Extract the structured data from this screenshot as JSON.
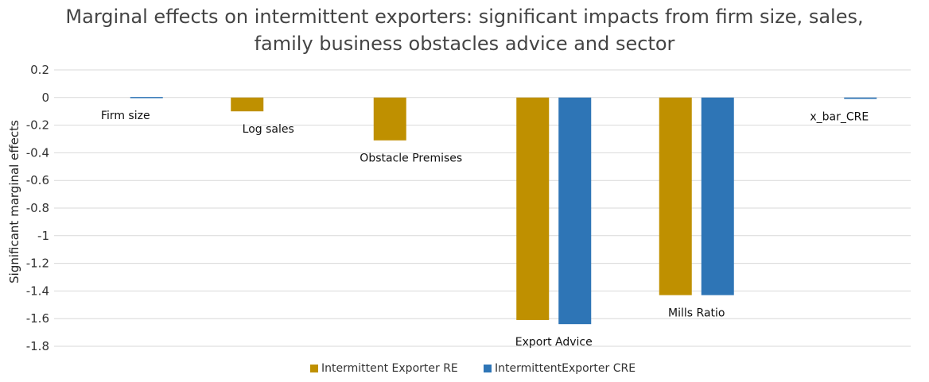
{
  "chart_data": {
    "type": "bar",
    "title": "Marginal effects on intermittent exporters: significant impacts from firm size, sales, family business obstacles advice and sector",
    "title_lines": [
      "Marginal effects on intermittent exporters: significant impacts from firm size, sales,",
      "family business obstacles advice and sector"
    ],
    "ylabel": "Significant marginal effects",
    "xlabel": "",
    "categories": [
      "Firm size",
      "Log sales",
      "Obstacle Premises",
      "Export Advice",
      "Mills Ratio",
      "x_bar_CRE"
    ],
    "series": [
      {
        "name": "Intermittent Exporter RE",
        "color": "#BF9000",
        "values": [
          0,
          -0.1,
          -0.31,
          -1.61,
          -1.43,
          0
        ]
      },
      {
        "name": "IntermittentExporter CRE",
        "color": "#2E75B6",
        "values": [
          0.004,
          0,
          0,
          -1.64,
          -1.43,
          -0.01
        ]
      }
    ],
    "ylim": [
      -1.8,
      0.2
    ],
    "yticks": [
      0.2,
      0,
      -0.2,
      -0.4,
      -0.6,
      -0.8,
      -1,
      -1.2,
      -1.4,
      -1.6,
      -1.8
    ],
    "ytick_labels": [
      "0.2",
      "0",
      "-0.2",
      "-0.4",
      "-0.6",
      "-0.8",
      "-1",
      "-1.2",
      "-1.4",
      "-1.6",
      "-1.8"
    ],
    "grid": true,
    "legend_position": "bottom"
  }
}
